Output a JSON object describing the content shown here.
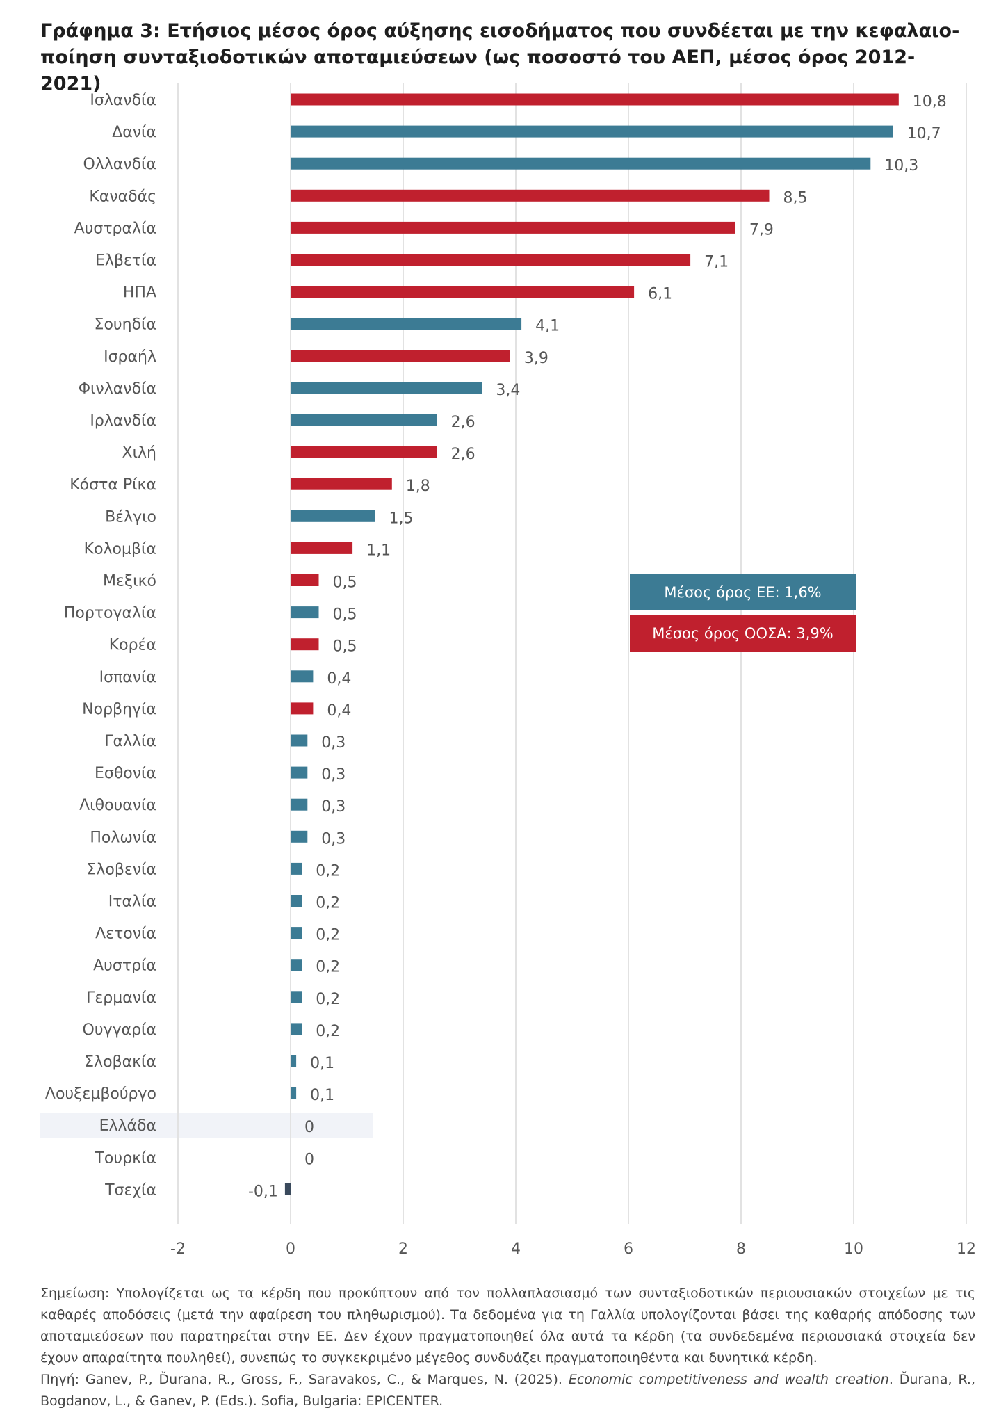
{
  "title_lines": [
    "Γράφημα 3: Ετήσιος μέσος όρος αύξησης εισοδήματος που συνδέεται με την κεφαλαιο-",
    "ποίηση συνταξιοδοτικών αποταμιεύσεων (ως ποσοστό του ΑΕΠ, μέσος όρος 2012-2021)"
  ],
  "chart_data": {
    "type": "bar",
    "orientation": "horizontal",
    "title": "Γράφημα 3: Ετήσιος μέσος όρος αύξησης εισοδήματος που συνδέεται με την κεφαλαιοποίηση συνταξιοδοτικών αποταμιεύσεων (ως ποσοστό του ΑΕΠ, μέσος όρος 2012-2021)",
    "xlim": [
      -2,
      12
    ],
    "xticks": [
      -2,
      0,
      2,
      4,
      6,
      8,
      10,
      12
    ],
    "xtick_labels": [
      "-2",
      "0",
      "2",
      "4",
      "6",
      "8",
      "10",
      "12"
    ],
    "grid": "vertical",
    "legend": "none",
    "categories": [
      "Ισλανδία",
      "Δανία",
      "Ολλανδία",
      "Καναδάς",
      "Αυστραλία",
      "Ελβετία",
      "ΗΠΑ",
      "Σουηδία",
      "Ισραήλ",
      "Φινλανδία",
      "Ιρλανδία",
      "Χιλή",
      "Κόστα Ρίκα",
      "Βέλγιο",
      "Κολομβία",
      "Μεξικό",
      "Πορτογαλία",
      "Κορέα",
      "Ισπανία",
      "Νορβηγία",
      "Γαλλία",
      "Εσθονία",
      "Λιθουανία",
      "Πολωνία",
      "Σλοβενία",
      "Ιταλία",
      "Λετονία",
      "Αυστρία",
      "Γερμανία",
      "Ουγγαρία",
      "Σλοβακία",
      "Λουξεμβούργο",
      "Ελλάδα",
      "Τουρκία",
      "Τσεχία"
    ],
    "values": [
      10.8,
      10.7,
      10.3,
      8.5,
      7.9,
      7.1,
      6.1,
      4.1,
      3.9,
      3.4,
      2.6,
      2.6,
      1.8,
      1.5,
      1.1,
      0.5,
      0.5,
      0.5,
      0.4,
      0.4,
      0.3,
      0.3,
      0.3,
      0.3,
      0.2,
      0.2,
      0.2,
      0.2,
      0.2,
      0.2,
      0.1,
      0.1,
      0,
      0,
      -0.1
    ],
    "value_labels": [
      "10,8",
      "10,7",
      "10,3",
      "8,5",
      "7,9",
      "7,1",
      "6,1",
      "4,1",
      "3,9",
      "3,4",
      "2,6",
      "2,6",
      "1,8",
      "1,5",
      "1,1",
      "0,5",
      "0,5",
      "0,5",
      "0,4",
      "0,4",
      "0,3",
      "0,3",
      "0,3",
      "0,3",
      "0,2",
      "0,2",
      "0,2",
      "0,2",
      "0,2",
      "0,2",
      "0,1",
      "0,1",
      "0",
      "0",
      "-0,1"
    ],
    "groups": [
      "oecd",
      "eu",
      "eu",
      "oecd",
      "oecd",
      "oecd",
      "oecd",
      "eu",
      "oecd",
      "eu",
      "eu",
      "oecd",
      "oecd",
      "eu",
      "oecd",
      "oecd",
      "eu",
      "oecd",
      "eu",
      "oecd",
      "eu",
      "eu",
      "eu",
      "eu",
      "eu",
      "eu",
      "eu",
      "eu",
      "eu",
      "eu",
      "eu",
      "eu",
      "eu",
      "oecd",
      "eu"
    ],
    "highlight_category": "Ελλάδα",
    "annotations": [
      {
        "text": "Μέσος όρος ΕΕ: 1,6%",
        "color": "#3c7b94"
      },
      {
        "text": "Μέσος όρος ΟΟΣΑ: 3,9%",
        "color": "#c0202e"
      }
    ]
  },
  "colors": {
    "eu": "#3c7b94",
    "oecd": "#c0202e",
    "negative": "#3a4a5c",
    "grid": "#e2e2e2",
    "highlight": "#f1f3f8"
  },
  "note_lines": [
    "Σημείωση: Υπολογίζεται ως τα κέρδη που προκύπτουν από τον πολλαπλασιασμό των συνταξιοδοτικών περιουσιακών στοιχείων με τις καθαρές αποδόσεις (μετά την αφαίρεση του πληθωρισμού). Τα δεδομένα για τη Γαλλία υπολογίζονται βάσει της καθαρής απόδοσης των αποταμιεύσεων που παρατηρείται στην ΕΕ. Δεν έχουν πραγματοποιηθεί όλα αυτά τα κέρδη (τα συνδεδεμένα περιουσιακά στοιχεία δεν έχουν απαραίτητα πουληθεί), συνεπώς το συγκεκριμένο μέγεθος συνδυάζει πραγματοποιηθέντα και δυνητικά κέρδη."
  ],
  "source": {
    "prefix": "Πηγή: Ganev, P., Ďurana, R., Gross, F., Saravakos, C., & Marques, N. (2025). ",
    "title": "Economic competitiveness and wealth creation",
    "suffix": ". Ďurana, R., Bogdanov, L., & Ganev, P. (Eds.). Sofia, Bulgaria: EPICENTER."
  }
}
